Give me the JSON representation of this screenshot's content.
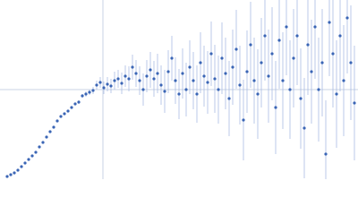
{
  "chart_data": {
    "type": "scatter",
    "xlim": [
      0,
      400
    ],
    "ylim": [
      0,
      200
    ],
    "hline": 100,
    "vline": 115,
    "line_color": "#c8d3e6",
    "series": [
      {
        "color": "#3a65b5",
        "error_color": "#aabde3",
        "x": [
          8,
          12,
          16,
          20,
          24,
          28,
          32,
          36,
          40,
          44,
          48,
          52,
          56,
          60,
          64,
          68,
          72,
          76,
          80,
          84,
          88,
          92,
          96,
          100,
          104,
          108,
          112,
          116,
          120,
          124,
          128,
          132,
          136,
          140,
          144,
          148,
          152,
          156,
          160,
          164,
          168,
          172,
          176,
          180,
          184,
          188,
          192,
          196,
          200,
          204,
          208,
          212,
          216,
          220,
          224,
          228,
          232,
          236,
          240,
          244,
          248,
          252,
          256,
          260,
          264,
          268,
          272,
          276,
          280,
          284,
          288,
          292,
          296,
          300,
          304,
          308,
          312,
          316,
          320,
          324,
          328,
          332,
          336,
          340,
          344,
          348,
          352,
          356,
          360,
          364,
          368,
          372,
          376,
          380,
          384,
          388,
          392,
          396
        ],
        "values": [
          3,
          5,
          7,
          10,
          14,
          18,
          22,
          26,
          30,
          36,
          41,
          47,
          53,
          58,
          65,
          70,
          73,
          76,
          80,
          84,
          86,
          93,
          95,
          97,
          99,
          105,
          108,
          102,
          106,
          104,
          110,
          112,
          107,
          115,
          112,
          125,
          118,
          110,
          100,
          115,
          122,
          112,
          118,
          105,
          98,
          120,
          135,
          110,
          95,
          118,
          100,
          125,
          110,
          95,
          130,
          115,
          108,
          140,
          112,
          100,
          135,
          118,
          90,
          125,
          145,
          105,
          66,
          120,
          150,
          110,
          95,
          130,
          160,
          115,
          140,
          80,
          155,
          110,
          170,
          100,
          135,
          160,
          90,
          57,
          150,
          120,
          170,
          100,
          130,
          28,
          175,
          140,
          95,
          160,
          110,
          180,
          130,
          85
        ],
        "errors": [
          1,
          1,
          1,
          1,
          1,
          1,
          1,
          1,
          1,
          1,
          1,
          1,
          1,
          1,
          1,
          1,
          1,
          1,
          1,
          1,
          2,
          2,
          3,
          3,
          4,
          5,
          6,
          7,
          8,
          8,
          10,
          10,
          12,
          12,
          14,
          14,
          15,
          16,
          18,
          18,
          20,
          20,
          22,
          22,
          24,
          24,
          25,
          26,
          28,
          28,
          30,
          30,
          32,
          32,
          34,
          34,
          35,
          36,
          38,
          38,
          40,
          40,
          42,
          42,
          44,
          44,
          45,
          46,
          48,
          48,
          50,
          50,
          50,
          52,
          52,
          52,
          54,
          54,
          54,
          55,
          55,
          55,
          56,
          56,
          56,
          58,
          58,
          58,
          60,
          60,
          60,
          60,
          60,
          62,
          62,
          62,
          64,
          64
        ]
      }
    ]
  }
}
